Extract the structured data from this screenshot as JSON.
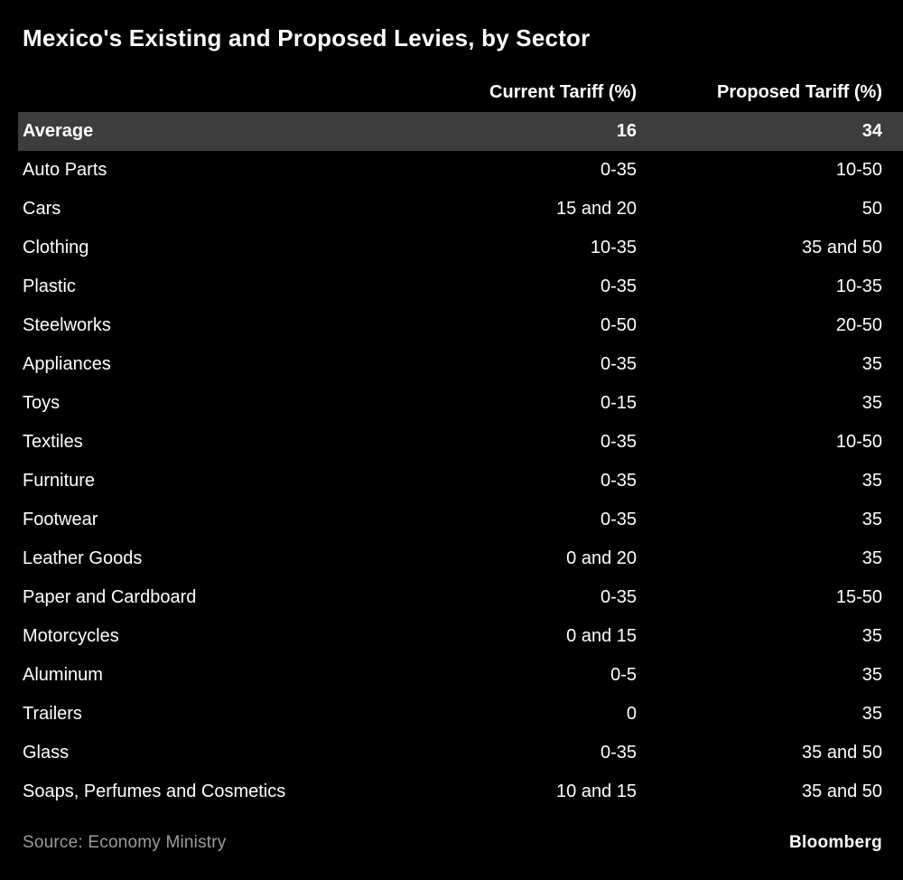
{
  "source": {
    "label": "Source:",
    "value": "Economy Ministry"
  },
  "brand": "Bloomberg",
  "colors": {
    "background": "#000000",
    "text": "#ffffff",
    "highlight_row": "#3d3d3d",
    "source_text": "#9c9c9c"
  },
  "chart_data": {
    "type": "table",
    "title": "Mexico's Existing and Proposed Levies, by Sector",
    "columns": [
      "",
      "Current Tariff (%)",
      "Proposed Tariff (%)"
    ],
    "highlight_row": "Average",
    "rows": [
      {
        "sector": "Average",
        "current": "16",
        "proposed": "34",
        "highlight": true
      },
      {
        "sector": "Auto Parts",
        "current": "0-35",
        "proposed": "10-50",
        "highlight": false
      },
      {
        "sector": "Cars",
        "current": "15 and 20",
        "proposed": "50",
        "highlight": false
      },
      {
        "sector": "Clothing",
        "current": "10-35",
        "proposed": "35 and 50",
        "highlight": false
      },
      {
        "sector": "Plastic",
        "current": "0-35",
        "proposed": "10-35",
        "highlight": false
      },
      {
        "sector": "Steelworks",
        "current": "0-50",
        "proposed": "20-50",
        "highlight": false
      },
      {
        "sector": "Appliances",
        "current": "0-35",
        "proposed": "35",
        "highlight": false
      },
      {
        "sector": "Toys",
        "current": "0-15",
        "proposed": "35",
        "highlight": false
      },
      {
        "sector": "Textiles",
        "current": "0-35",
        "proposed": "10-50",
        "highlight": false
      },
      {
        "sector": "Furniture",
        "current": "0-35",
        "proposed": "35",
        "highlight": false
      },
      {
        "sector": "Footwear",
        "current": "0-35",
        "proposed": "35",
        "highlight": false
      },
      {
        "sector": "Leather Goods",
        "current": "0 and 20",
        "proposed": "35",
        "highlight": false
      },
      {
        "sector": "Paper and Cardboard",
        "current": "0-35",
        "proposed": "15-50",
        "highlight": false
      },
      {
        "sector": "Motorcycles",
        "current": "0 and 15",
        "proposed": "35",
        "highlight": false
      },
      {
        "sector": "Aluminum",
        "current": "0-5",
        "proposed": "35",
        "highlight": false
      },
      {
        "sector": "Trailers",
        "current": "0",
        "proposed": "35",
        "highlight": false
      },
      {
        "sector": "Glass",
        "current": "0-35",
        "proposed": "35 and 50",
        "highlight": false
      },
      {
        "sector": "Soaps, Perfumes and Cosmetics",
        "current": "10 and 15",
        "proposed": "35 and 50",
        "highlight": false
      }
    ]
  }
}
